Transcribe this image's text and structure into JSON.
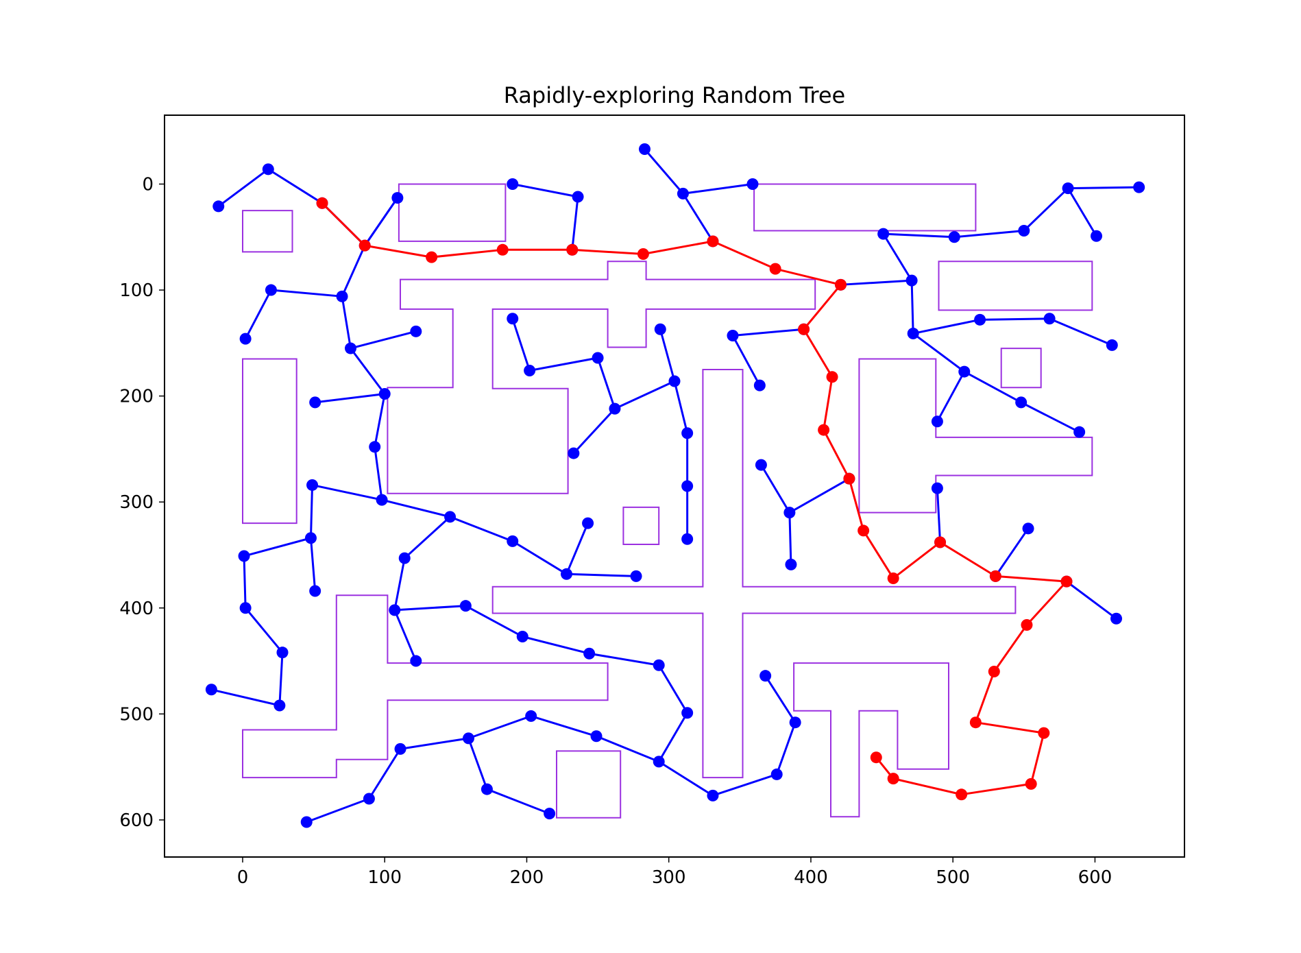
{
  "chart_data": {
    "type": "tree-plot",
    "title": "Rapidly-exploring Random Tree",
    "xlabel": "",
    "ylabel": "",
    "xlim": [
      -55,
      663
    ],
    "ylim": [
      635,
      -65
    ],
    "y_inverted": true,
    "xticks": [
      0,
      100,
      200,
      300,
      400,
      500,
      600
    ],
    "yticks": [
      0,
      100,
      200,
      300,
      400,
      500,
      600
    ],
    "grid": false,
    "legend": "none",
    "colors": {
      "tree": "#0000ff",
      "path": "#ff0000",
      "obstacle": "#9b30e0",
      "axis": "#000000"
    },
    "obstacles": [
      [
        [
          0,
          25
        ],
        [
          35,
          25
        ],
        [
          35,
          64
        ],
        [
          0,
          64
        ]
      ],
      [
        [
          0,
          165
        ],
        [
          38,
          165
        ],
        [
          38,
          320
        ],
        [
          0,
          320
        ]
      ],
      [
        [
          110,
          0
        ],
        [
          185,
          0
        ],
        [
          185,
          54
        ],
        [
          110,
          54
        ]
      ],
      [
        [
          111,
          90
        ],
        [
          257,
          90
        ],
        [
          257,
          73
        ],
        [
          284,
          73
        ],
        [
          284,
          90
        ],
        [
          403,
          90
        ],
        [
          403,
          118
        ],
        [
          284,
          118
        ],
        [
          284,
          154
        ],
        [
          257,
          154
        ],
        [
          257,
          118
        ],
        [
          176,
          118
        ],
        [
          176,
          193
        ],
        [
          229,
          193
        ],
        [
          229,
          292
        ],
        [
          102,
          292
        ],
        [
          102,
          192
        ],
        [
          148,
          192
        ],
        [
          148,
          118
        ],
        [
          111,
          118
        ]
      ],
      [
        [
          360,
          0
        ],
        [
          516,
          0
        ],
        [
          516,
          44
        ],
        [
          360,
          44
        ]
      ],
      [
        [
          490,
          73
        ],
        [
          598,
          73
        ],
        [
          598,
          119
        ],
        [
          490,
          119
        ]
      ],
      [
        [
          534,
          155
        ],
        [
          562,
          155
        ],
        [
          562,
          192
        ],
        [
          534,
          192
        ]
      ],
      [
        [
          434,
          165
        ],
        [
          488,
          165
        ],
        [
          488,
          239
        ],
        [
          598,
          239
        ],
        [
          598,
          275
        ],
        [
          488,
          275
        ],
        [
          488,
          310
        ],
        [
          434,
          310
        ]
      ],
      [
        [
          268,
          305
        ],
        [
          293,
          305
        ],
        [
          293,
          340
        ],
        [
          268,
          340
        ]
      ],
      [
        [
          324,
          175
        ],
        [
          352,
          175
        ],
        [
          352,
          380
        ],
        [
          544,
          380
        ],
        [
          544,
          405
        ],
        [
          352,
          405
        ],
        [
          352,
          560
        ],
        [
          324,
          560
        ],
        [
          324,
          405
        ],
        [
          176,
          405
        ],
        [
          176,
          380
        ],
        [
          324,
          380
        ]
      ],
      [
        [
          66,
          388
        ],
        [
          102,
          388
        ],
        [
          102,
          452
        ],
        [
          257,
          452
        ],
        [
          257,
          487
        ],
        [
          102,
          487
        ],
        [
          102,
          543
        ],
        [
          66,
          543
        ],
        [
          66,
          560
        ],
        [
          0,
          560
        ],
        [
          0,
          515
        ],
        [
          66,
          515
        ]
      ],
      [
        [
          221,
          535
        ],
        [
          266,
          535
        ],
        [
          266,
          598
        ],
        [
          221,
          598
        ]
      ],
      [
        [
          388,
          452
        ],
        [
          497,
          452
        ],
        [
          497,
          552
        ],
        [
          461,
          552
        ],
        [
          461,
          497
        ],
        [
          434,
          497
        ],
        [
          434,
          597
        ],
        [
          414,
          597
        ],
        [
          414,
          497
        ],
        [
          388,
          497
        ]
      ]
    ],
    "tree_edges": [
      [
        [
          -17,
          21
        ],
        [
          18,
          -14
        ]
      ],
      [
        [
          18,
          -14
        ],
        [
          56,
          18
        ]
      ],
      [
        [
          56,
          18
        ],
        [
          86,
          58
        ]
      ],
      [
        [
          86,
          58
        ],
        [
          109,
          13
        ]
      ],
      [
        [
          86,
          58
        ],
        [
          70,
          106
        ]
      ],
      [
        [
          70,
          106
        ],
        [
          20,
          100
        ]
      ],
      [
        [
          20,
          100
        ],
        [
          2,
          146
        ]
      ],
      [
        [
          70,
          106
        ],
        [
          76,
          155
        ]
      ],
      [
        [
          76,
          155
        ],
        [
          122,
          139
        ]
      ],
      [
        [
          76,
          155
        ],
        [
          100,
          198
        ]
      ],
      [
        [
          100,
          198
        ],
        [
          51,
          206
        ]
      ],
      [
        [
          100,
          198
        ],
        [
          93,
          248
        ]
      ],
      [
        [
          93,
          248
        ],
        [
          98,
          298
        ]
      ],
      [
        [
          98,
          298
        ],
        [
          49,
          284
        ]
      ],
      [
        [
          49,
          284
        ],
        [
          48,
          334
        ]
      ],
      [
        [
          48,
          334
        ],
        [
          51,
          384
        ]
      ],
      [
        [
          48,
          334
        ],
        [
          1,
          351
        ]
      ],
      [
        [
          1,
          351
        ],
        [
          2,
          400
        ]
      ],
      [
        [
          2,
          400
        ],
        [
          28,
          442
        ]
      ],
      [
        [
          28,
          442
        ],
        [
          26,
          492
        ]
      ],
      [
        [
          26,
          492
        ],
        [
          -22,
          477
        ]
      ],
      [
        [
          98,
          298
        ],
        [
          146,
          314
        ]
      ],
      [
        [
          146,
          314
        ],
        [
          190,
          337
        ]
      ],
      [
        [
          190,
          337
        ],
        [
          228,
          368
        ]
      ],
      [
        [
          228,
          368
        ],
        [
          243,
          320
        ]
      ],
      [
        [
          228,
          368
        ],
        [
          277,
          370
        ]
      ],
      [
        [
          146,
          314
        ],
        [
          114,
          353
        ]
      ],
      [
        [
          114,
          353
        ],
        [
          107,
          402
        ]
      ],
      [
        [
          107,
          402
        ],
        [
          122,
          450
        ]
      ],
      [
        [
          107,
          402
        ],
        [
          157,
          398
        ]
      ],
      [
        [
          157,
          398
        ],
        [
          197,
          427
        ]
      ],
      [
        [
          197,
          427
        ],
        [
          244,
          443
        ]
      ],
      [
        [
          244,
          443
        ],
        [
          293,
          454
        ]
      ],
      [
        [
          293,
          454
        ],
        [
          313,
          499
        ]
      ],
      [
        [
          313,
          499
        ],
        [
          293,
          545
        ]
      ],
      [
        [
          293,
          545
        ],
        [
          249,
          521
        ]
      ],
      [
        [
          249,
          521
        ],
        [
          203,
          502
        ]
      ],
      [
        [
          203,
          502
        ],
        [
          159,
          523
        ]
      ],
      [
        [
          159,
          523
        ],
        [
          111,
          533
        ]
      ],
      [
        [
          111,
          533
        ],
        [
          89,
          580
        ]
      ],
      [
        [
          89,
          580
        ],
        [
          45,
          602
        ]
      ],
      [
        [
          159,
          523
        ],
        [
          172,
          571
        ]
      ],
      [
        [
          172,
          571
        ],
        [
          216,
          594
        ]
      ],
      [
        [
          293,
          545
        ],
        [
          331,
          577
        ]
      ],
      [
        [
          331,
          577
        ],
        [
          376,
          557
        ]
      ],
      [
        [
          376,
          557
        ],
        [
          389,
          508
        ]
      ],
      [
        [
          389,
          508
        ],
        [
          368,
          464
        ]
      ],
      [
        [
          190,
          127
        ],
        [
          202,
          176
        ]
      ],
      [
        [
          202,
          176
        ],
        [
          250,
          164
        ]
      ],
      [
        [
          250,
          164
        ],
        [
          262,
          212
        ]
      ],
      [
        [
          262,
          212
        ],
        [
          233,
          254
        ]
      ],
      [
        [
          262,
          212
        ],
        [
          304,
          186
        ]
      ],
      [
        [
          304,
          186
        ],
        [
          294,
          137
        ]
      ],
      [
        [
          304,
          186
        ],
        [
          313,
          235
        ]
      ],
      [
        [
          313,
          235
        ],
        [
          313,
          285
        ]
      ],
      [
        [
          313,
          285
        ],
        [
          313,
          335
        ]
      ],
      [
        [
          109,
          13
        ],
        [
          86,
          58
        ]
      ],
      [
        [
          190,
          0
        ],
        [
          236,
          12
        ]
      ],
      [
        [
          236,
          12
        ],
        [
          232,
          62
        ]
      ],
      [
        [
          283,
          -33
        ],
        [
          310,
          9
        ]
      ],
      [
        [
          310,
          9
        ],
        [
          331,
          54
        ]
      ],
      [
        [
          310,
          9
        ],
        [
          359,
          0
        ]
      ],
      [
        [
          421,
          95
        ],
        [
          471,
          91
        ]
      ],
      [
        [
          471,
          91
        ],
        [
          451,
          47
        ]
      ],
      [
        [
          451,
          47
        ],
        [
          501,
          50
        ]
      ],
      [
        [
          501,
          50
        ],
        [
          550,
          44
        ]
      ],
      [
        [
          550,
          44
        ],
        [
          581,
          4
        ]
      ],
      [
        [
          581,
          4
        ],
        [
          631,
          3
        ]
      ],
      [
        [
          581,
          4
        ],
        [
          601,
          49
        ]
      ],
      [
        [
          471,
          91
        ],
        [
          472,
          141
        ]
      ],
      [
        [
          472,
          141
        ],
        [
          519,
          128
        ]
      ],
      [
        [
          519,
          128
        ],
        [
          568,
          127
        ]
      ],
      [
        [
          568,
          127
        ],
        [
          612,
          152
        ]
      ],
      [
        [
          472,
          141
        ],
        [
          508,
          177
        ]
      ],
      [
        [
          508,
          177
        ],
        [
          489,
          224
        ]
      ],
      [
        [
          508,
          177
        ],
        [
          548,
          206
        ]
      ],
      [
        [
          548,
          206
        ],
        [
          589,
          234
        ]
      ],
      [
        [
          395,
          137
        ],
        [
          345,
          143
        ]
      ],
      [
        [
          345,
          143
        ],
        [
          364,
          190
        ]
      ],
      [
        [
          365,
          265
        ],
        [
          385,
          310
        ]
      ],
      [
        [
          385,
          310
        ],
        [
          386,
          359
        ]
      ],
      [
        [
          385,
          310
        ],
        [
          427,
          278
        ]
      ],
      [
        [
          489,
          287
        ],
        [
          491,
          338
        ]
      ],
      [
        [
          530,
          370
        ],
        [
          553,
          325
        ]
      ],
      [
        [
          580,
          375
        ],
        [
          615,
          410
        ]
      ]
    ],
    "path_edges": [
      [
        [
          56,
          18
        ],
        [
          86,
          58
        ]
      ],
      [
        [
          86,
          58
        ],
        [
          133,
          69
        ]
      ],
      [
        [
          133,
          69
        ],
        [
          183,
          62
        ]
      ],
      [
        [
          183,
          62
        ],
        [
          232,
          62
        ]
      ],
      [
        [
          232,
          62
        ],
        [
          282,
          66
        ]
      ],
      [
        [
          282,
          66
        ],
        [
          331,
          54
        ]
      ],
      [
        [
          331,
          54
        ],
        [
          375,
          80
        ]
      ],
      [
        [
          375,
          80
        ],
        [
          421,
          95
        ]
      ],
      [
        [
          421,
          95
        ],
        [
          395,
          137
        ]
      ],
      [
        [
          395,
          137
        ],
        [
          415,
          182
        ]
      ],
      [
        [
          415,
          182
        ],
        [
          409,
          232
        ]
      ],
      [
        [
          409,
          232
        ],
        [
          427,
          278
        ]
      ],
      [
        [
          427,
          278
        ],
        [
          437,
          327
        ]
      ],
      [
        [
          437,
          327
        ],
        [
          458,
          372
        ]
      ],
      [
        [
          458,
          372
        ],
        [
          491,
          338
        ]
      ],
      [
        [
          491,
          338
        ],
        [
          530,
          370
        ]
      ],
      [
        [
          530,
          370
        ],
        [
          580,
          375
        ]
      ],
      [
        [
          580,
          375
        ],
        [
          552,
          416
        ]
      ],
      [
        [
          552,
          416
        ],
        [
          529,
          460
        ]
      ],
      [
        [
          529,
          460
        ],
        [
          516,
          508
        ]
      ],
      [
        [
          516,
          508
        ],
        [
          564,
          518
        ]
      ],
      [
        [
          564,
          518
        ],
        [
          555,
          566
        ]
      ],
      [
        [
          555,
          566
        ],
        [
          506,
          576
        ]
      ],
      [
        [
          506,
          576
        ],
        [
          458,
          561
        ]
      ],
      [
        [
          458,
          561
        ],
        [
          446,
          541
        ]
      ]
    ]
  }
}
